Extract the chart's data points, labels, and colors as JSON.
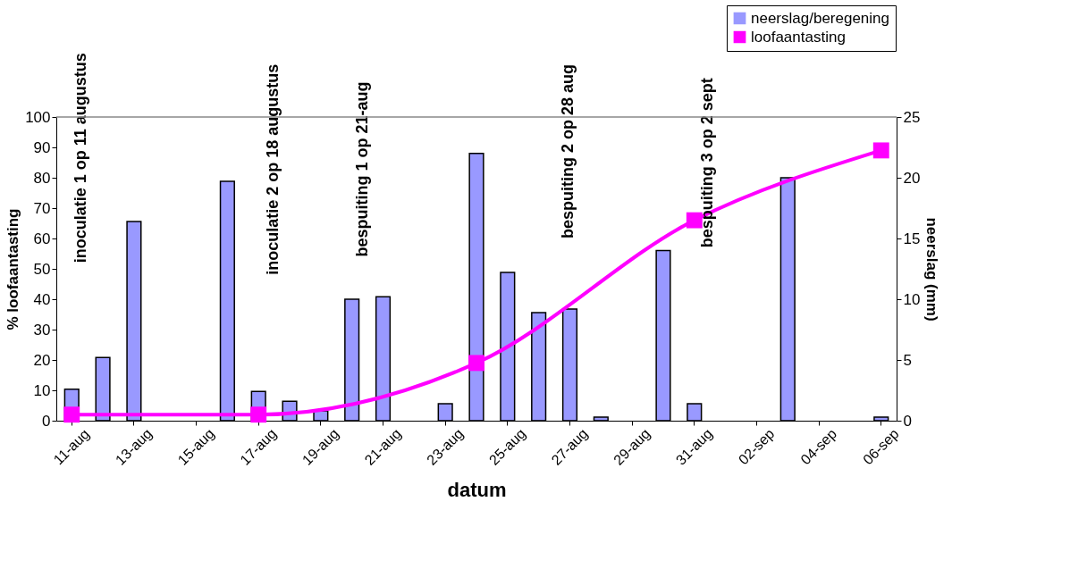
{
  "chart_data": {
    "type": "bar",
    "xlabel": "datum",
    "ylabel": "% loofaantasting",
    "y2label": "neerslag (mm)",
    "categories": [
      "11-aug",
      null,
      "13-aug",
      null,
      "15-aug",
      null,
      "17-aug",
      null,
      "19-aug",
      null,
      "21-aug",
      null,
      "23-aug",
      null,
      "25-aug",
      null,
      "27-aug",
      null,
      "29-aug",
      null,
      "31-aug",
      null,
      "02-sep",
      null,
      "04-sep",
      null,
      "06-sep"
    ],
    "series": [
      {
        "name": "neerslag/beregening",
        "axis": "y2",
        "color": "#9999ff",
        "values": [
          2.6,
          5.2,
          16.4,
          0,
          0,
          19.7,
          2.4,
          1.6,
          0.8,
          10,
          10.2,
          0,
          1.4,
          22,
          12.2,
          8.9,
          9.2,
          0.3,
          0,
          14,
          1.4,
          0,
          0,
          20,
          0,
          0,
          0.3
        ]
      },
      {
        "name": "loofaantasting",
        "type": "line",
        "color": "#ff00ff",
        "values": [
          2,
          null,
          null,
          null,
          null,
          null,
          2,
          null,
          null,
          null,
          null,
          null,
          null,
          19,
          null,
          null,
          null,
          null,
          null,
          null,
          66,
          null,
          null,
          null,
          null,
          null,
          89
        ]
      }
    ],
    "ylim": [
      0,
      100
    ],
    "yticks": [
      0,
      10,
      20,
      30,
      40,
      50,
      60,
      70,
      80,
      90,
      100
    ],
    "y2lim": [
      0,
      25
    ],
    "y2ticks": [
      0,
      5,
      10,
      15,
      20,
      25
    ],
    "annotations": [
      "inoculatie 1 op 11 augustus",
      "inoculatie 2 op 18 augustus",
      "bespuiting 1 op 21-aug",
      "bespuiting 2 op 28 aug",
      "bespuiting 3 op 2 sept"
    ],
    "marker": "square",
    "legend": "top right",
    "grid": false
  }
}
